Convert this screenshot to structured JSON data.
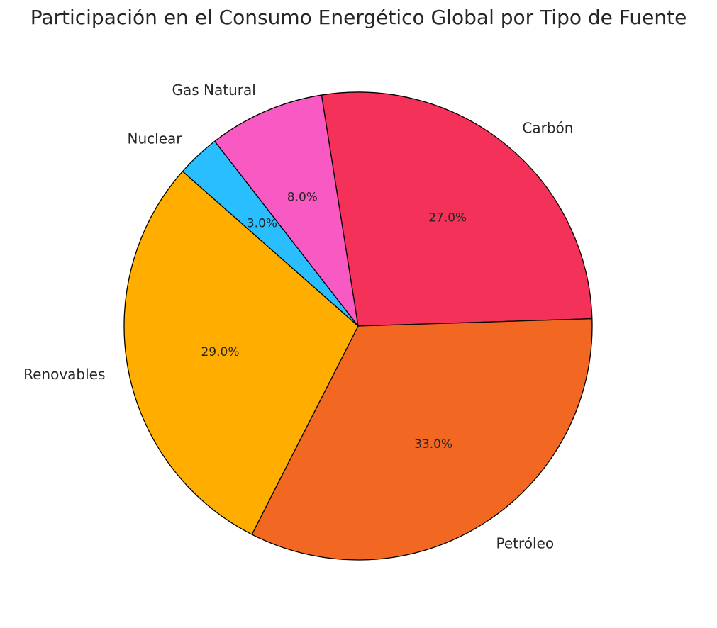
{
  "chart_data": {
    "type": "pie",
    "title": "Participación en el Consumo Energético Global por Tipo de Fuente",
    "slices": [
      {
        "label": "Carbón",
        "value": 27.0,
        "pct_label": "27.0%",
        "color": "#F43158"
      },
      {
        "label": "Petróleo",
        "value": 33.0,
        "pct_label": "33.0%",
        "color": "#F26822"
      },
      {
        "label": "Renovables",
        "value": 29.0,
        "pct_label": "29.0%",
        "color": "#FFAE00"
      },
      {
        "label": "Nuclear",
        "value": 3.0,
        "pct_label": "3.0%",
        "color": "#29BFFE"
      },
      {
        "label": "Gas Natural",
        "value": 8.0,
        "pct_label": "8.0%",
        "color": "#F859C3"
      }
    ],
    "start_angle_deg": 99,
    "direction": "clockwise",
    "edge_color": "#000000"
  }
}
